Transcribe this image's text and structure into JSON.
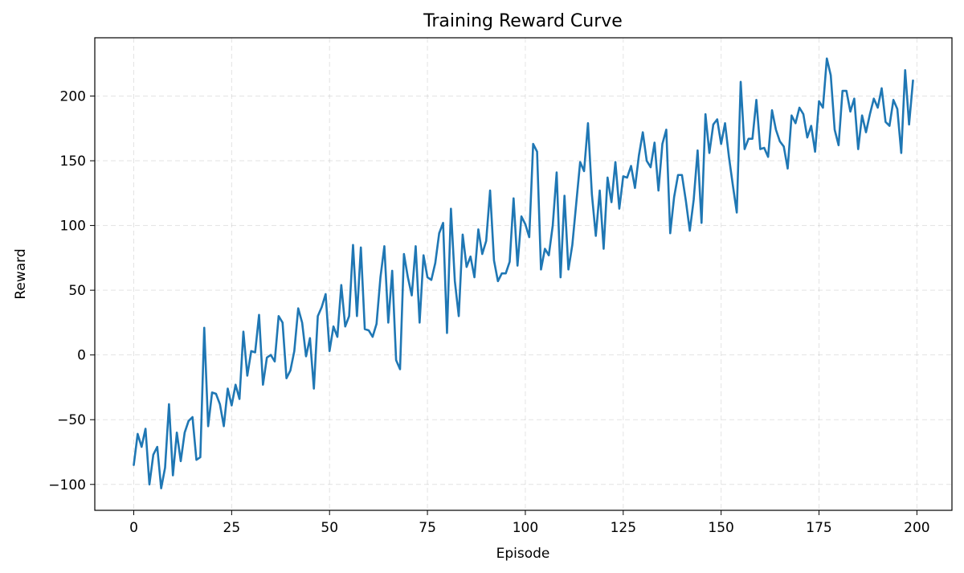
{
  "chart_data": {
    "type": "line",
    "title": "Training Reward Curve",
    "xlabel": "Episode",
    "ylabel": "Reward",
    "xlim": [
      -9.95,
      208.95
    ],
    "ylim": [
      -120,
      245
    ],
    "xticks": [
      0,
      25,
      50,
      75,
      100,
      125,
      150,
      175,
      200
    ],
    "yticks": [
      -100,
      -50,
      0,
      50,
      100,
      150,
      200
    ],
    "xtick_labels": [
      "0",
      "25",
      "50",
      "75",
      "100",
      "125",
      "150",
      "175",
      "200"
    ],
    "ytick_labels": [
      "−100",
      "−50",
      "0",
      "50",
      "100",
      "150",
      "200"
    ],
    "grid": true,
    "series": [
      {
        "color": "#1f77b4",
        "x": [
          0,
          1,
          2,
          3,
          4,
          5,
          6,
          7,
          8,
          9,
          10,
          11,
          12,
          13,
          14,
          15,
          16,
          17,
          18,
          19,
          20,
          21,
          22,
          23,
          24,
          25,
          26,
          27,
          28,
          29,
          30,
          31,
          32,
          33,
          34,
          35,
          36,
          37,
          38,
          39,
          40,
          41,
          42,
          43,
          44,
          45,
          46,
          47,
          48,
          49,
          50,
          51,
          52,
          53,
          54,
          55,
          56,
          57,
          58,
          59,
          60,
          61,
          62,
          63,
          64,
          65,
          66,
          67,
          68,
          69,
          70,
          71,
          72,
          73,
          74,
          75,
          76,
          77,
          78,
          79,
          80,
          81,
          82,
          83,
          84,
          85,
          86,
          87,
          88,
          89,
          90,
          91,
          92,
          93,
          94,
          95,
          96,
          97,
          98,
          99,
          100,
          101,
          102,
          103,
          104,
          105,
          106,
          107,
          108,
          109,
          110,
          111,
          112,
          113,
          114,
          115,
          116,
          117,
          118,
          119,
          120,
          121,
          122,
          123,
          124,
          125,
          126,
          127,
          128,
          129,
          130,
          131,
          132,
          133,
          134,
          135,
          136,
          137,
          138,
          139,
          140,
          141,
          142,
          143,
          144,
          145,
          146,
          147,
          148,
          149,
          150,
          151,
          152,
          153,
          154,
          155,
          156,
          157,
          158,
          159,
          160,
          161,
          162,
          163,
          164,
          165,
          166,
          167,
          168,
          169,
          170,
          171,
          172,
          173,
          174,
          175,
          176,
          177,
          178,
          179,
          180,
          181,
          182,
          183,
          184,
          185,
          186,
          187,
          188,
          189,
          190,
          191,
          192,
          193,
          194,
          195,
          196,
          197,
          198,
          199
        ],
        "values": [
          -85,
          -61,
          -71,
          -57,
          -100,
          -77,
          -71,
          -103,
          -87,
          -38,
          -93,
          -60,
          -82,
          -60,
          -51,
          -48,
          -81,
          -79,
          21,
          -55,
          -29,
          -30,
          -38,
          -55,
          -26,
          -39,
          -23,
          -34,
          18,
          -16,
          3,
          2,
          31,
          -23,
          -2,
          0,
          -5,
          30,
          25,
          -18,
          -12,
          3,
          36,
          25,
          -1,
          13,
          -26,
          30,
          37,
          47,
          3,
          22,
          14,
          54,
          22,
          30,
          85,
          30,
          83,
          20,
          19,
          14,
          24,
          60,
          84,
          25,
          65,
          -4,
          -11,
          78,
          60,
          46,
          84,
          25,
          77,
          60,
          58,
          71,
          94,
          102,
          17,
          113,
          57,
          30,
          93,
          68,
          76,
          60,
          97,
          78,
          88,
          127,
          73,
          57,
          63,
          63,
          72,
          121,
          69,
          107,
          101,
          91,
          163,
          157,
          66,
          82,
          77,
          100,
          141,
          60,
          123,
          66,
          85,
          117,
          149,
          142,
          179,
          124,
          92,
          127,
          82,
          137,
          118,
          149,
          113,
          138,
          137,
          146,
          129,
          154,
          172,
          150,
          145,
          164,
          127,
          163,
          174,
          94,
          122,
          139,
          139,
          119,
          96,
          120,
          158,
          102,
          186,
          156,
          178,
          182,
          163,
          179,
          153,
          131,
          110,
          211,
          159,
          167,
          167,
          197,
          159,
          160,
          153,
          189,
          174,
          165,
          161,
          144,
          185,
          179,
          191,
          186,
          168,
          177,
          157,
          196,
          191,
          229,
          216,
          174,
          162,
          204,
          204,
          188,
          198,
          159,
          185,
          172,
          186,
          198,
          191,
          206,
          180,
          177,
          197,
          190,
          156,
          220,
          178,
          212
        ]
      }
    ]
  }
}
